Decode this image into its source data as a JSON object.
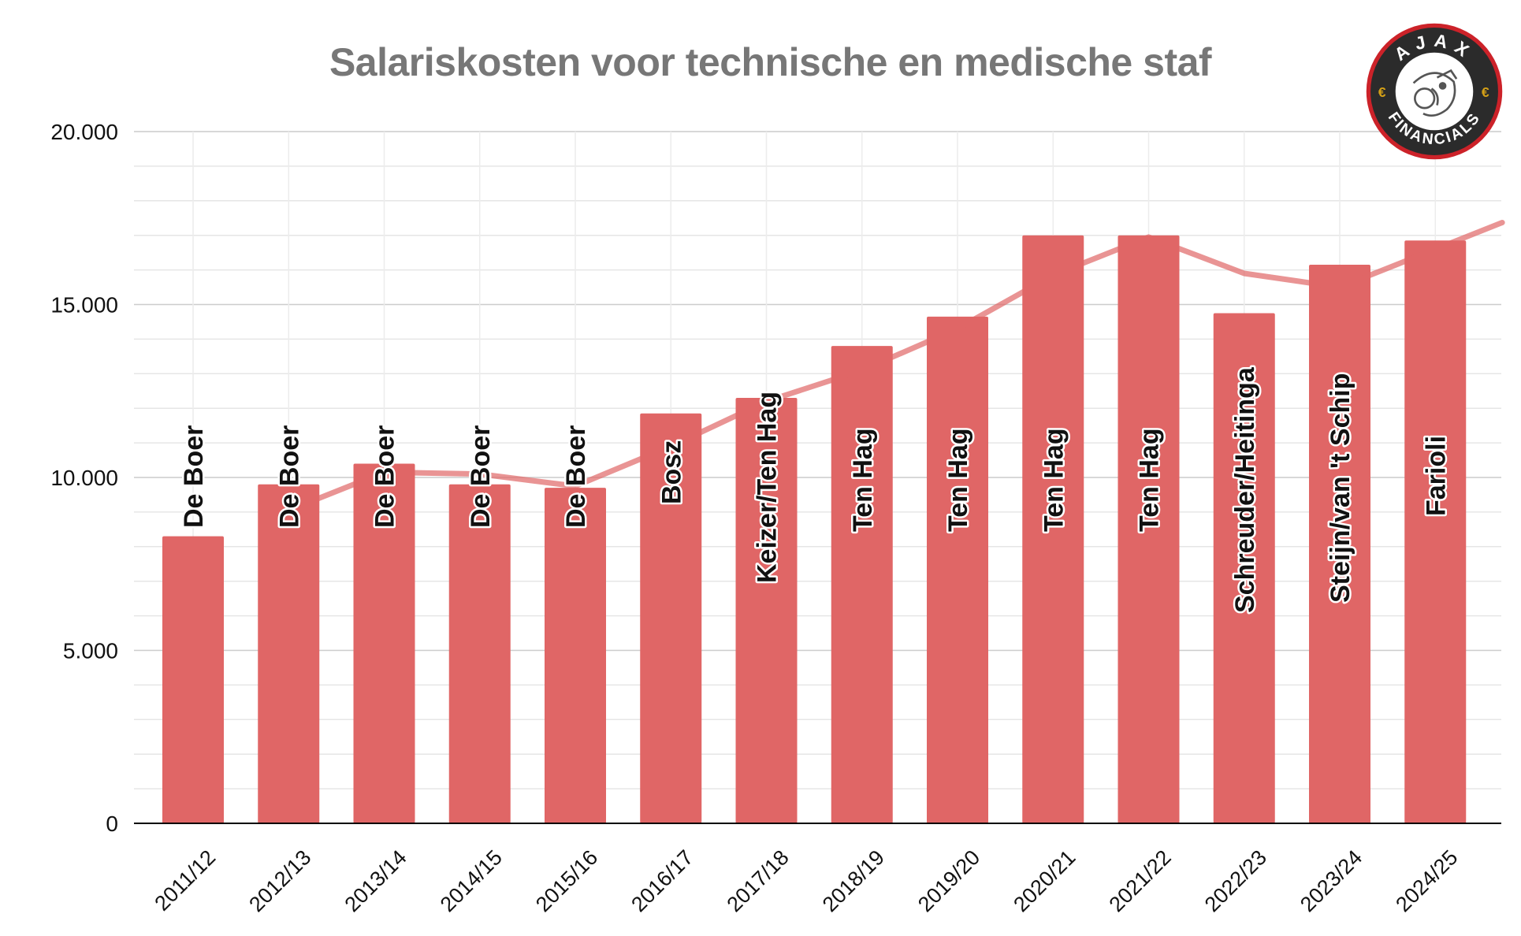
{
  "chart_data": {
    "type": "bar",
    "title": "Salariskosten voor technische en medische staf",
    "categories": [
      "2011/12",
      "2012/13",
      "2013/14",
      "2014/15",
      "2015/16",
      "2016/17",
      "2017/18",
      "2018/19",
      "2019/20",
      "2020/21",
      "2021/22",
      "2022/23",
      "2023/24",
      "2024/25"
    ],
    "series": [
      {
        "values": [
          8300,
          9800,
          10400,
          9800,
          9700,
          11850,
          12300,
          13800,
          14650,
          17000,
          17000,
          14750,
          16150,
          16850
        ]
      }
    ],
    "trend_line": [
      null,
      9050,
      10150,
      10100,
      9750,
      10900,
      12200,
      13100,
      14300,
      15850,
      16950,
      15900,
      15500,
      16600
    ],
    "bar_labels": [
      "De Boer",
      "De Boer",
      "De Boer",
      "De Boer",
      "De Boer",
      "Bosz",
      "Keizer/Ten Hag",
      "Ten Hag",
      "Ten Hag",
      "Ten Hag",
      "Ten Hag",
      "Schreuder/Heitinga",
      "Steijn/van 't Schip",
      "Farioli"
    ],
    "y_ticks": [
      "0",
      "5.000",
      "10.000",
      "15.000",
      "20.000"
    ],
    "ylim": [
      0,
      20000
    ],
    "xlabel": "",
    "ylabel": "",
    "grid": true,
    "colors": {
      "bar": "#e06666",
      "trend": "#e06666",
      "grid": "#dddddd",
      "axis": "#000000",
      "title": "#777777"
    }
  },
  "logo": {
    "top_text": "AJAX",
    "bottom_text": "FINANCIALS",
    "symbol": "€",
    "ring_color": "#2b2b2b",
    "outer_color": "#cc2229"
  }
}
